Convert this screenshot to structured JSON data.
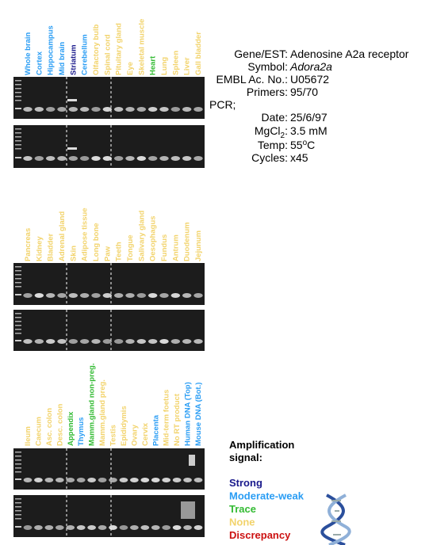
{
  "panels": [
    {
      "lanes": [
        {
          "label": "Whole brain",
          "color": "#2a9df4"
        },
        {
          "label": "Cortex",
          "color": "#2a9df4"
        },
        {
          "label": "Hippocampus",
          "color": "#2a9df4"
        },
        {
          "label": "Mid brain",
          "color": "#2a9df4"
        },
        {
          "label": "Striatum",
          "color": "#1a1a8c"
        },
        {
          "label": "Cerebellum",
          "color": "#2a9df4"
        },
        {
          "label": "Olfactory bulb",
          "color": "#f2d36b"
        },
        {
          "label": "Spinal cord",
          "color": "#f2d36b"
        },
        {
          "label": "Pituitary gland",
          "color": "#f2d36b"
        },
        {
          "label": "Eye",
          "color": "#f2d36b"
        },
        {
          "label": "Skeletal muscle",
          "color": "#f2d36b"
        },
        {
          "label": "Heart",
          "color": "#33bb33"
        },
        {
          "label": "Lung",
          "color": "#f2d36b"
        },
        {
          "label": "Spleen",
          "color": "#f2d36b"
        },
        {
          "label": "Liver",
          "color": "#f2d36b"
        },
        {
          "label": "Gall bladder",
          "color": "#f2d36b"
        }
      ]
    },
    {
      "lanes": [
        {
          "label": "Pancreas",
          "color": "#f2d36b"
        },
        {
          "label": "Kidney",
          "color": "#f2d36b"
        },
        {
          "label": "Bladder",
          "color": "#f2d36b"
        },
        {
          "label": "Adrenal gland",
          "color": "#f2d36b"
        },
        {
          "label": "Skin",
          "color": "#f2d36b"
        },
        {
          "label": "Adipose tissue",
          "color": "#f2d36b"
        },
        {
          "label": "Long bone",
          "color": "#f2d36b"
        },
        {
          "label": "Paw",
          "color": "#f2d36b"
        },
        {
          "label": "Teeth",
          "color": "#f2d36b"
        },
        {
          "label": "Tongue",
          "color": "#f2d36b"
        },
        {
          "label": "Salivary gland",
          "color": "#f2d36b"
        },
        {
          "label": "Oesophagus",
          "color": "#f2d36b"
        },
        {
          "label": "Fundus",
          "color": "#f2d36b"
        },
        {
          "label": "Antrum",
          "color": "#f2d36b"
        },
        {
          "label": "Duodenum",
          "color": "#f2d36b"
        },
        {
          "label": "Jejunum",
          "color": "#f2d36b"
        }
      ]
    },
    {
      "lanes": [
        {
          "label": "Ileum",
          "color": "#f2d36b"
        },
        {
          "label": "Caecum",
          "color": "#f2d36b"
        },
        {
          "label": "Asc. colon",
          "color": "#f2d36b"
        },
        {
          "label": "Desc. colon",
          "color": "#f2d36b"
        },
        {
          "label": "Appendix",
          "color": "#33bb33"
        },
        {
          "label": "Thymus",
          "color": "#2a9df4"
        },
        {
          "label": "Mamm.gland non-preg.",
          "color": "#33bb33"
        },
        {
          "label": "Mamm.gland preg.",
          "color": "#f2d36b"
        },
        {
          "label": "Testis",
          "color": "#f2d36b"
        },
        {
          "label": "Epididymis",
          "color": "#f2d36b"
        },
        {
          "label": "Ovary",
          "color": "#f2d36b"
        },
        {
          "label": "Cervix",
          "color": "#f2d36b"
        },
        {
          "label": "Placenta",
          "color": "#2a9df4"
        },
        {
          "label": "Mid-term foetus",
          "color": "#f2d36b"
        },
        {
          "label": "No RT product",
          "color": "#f2d36b"
        },
        {
          "label": "Human DNA (Top)",
          "color": "#2a9df4"
        },
        {
          "label": "Mouse DNA (Bot.)",
          "color": "#2a9df4"
        }
      ]
    }
  ],
  "info": {
    "gene": {
      "key": "Gene/EST:",
      "value": "Adenosine A2a receptor"
    },
    "symbol": {
      "key": "Symbol:",
      "value": "Adora2a"
    },
    "embl": {
      "key": "EMBL Ac. No.:",
      "value": "U05672"
    },
    "primers": {
      "key": "Primers:",
      "value": "95/70"
    },
    "pcr": "PCR;",
    "date": {
      "key": "Date:",
      "value": "25/6/97"
    },
    "mgcl": {
      "key": "MgCl",
      "sub": "2",
      "colon": ":",
      "value": "3.5 mM"
    },
    "temp": {
      "key": "Temp:",
      "value": "55",
      "sup": "o",
      "unit": "C"
    },
    "cycles": {
      "key": "Cycles:",
      "value": "x45"
    }
  },
  "legend": {
    "title1": "Amplification",
    "title2": "signal:",
    "items": [
      {
        "label": "Strong",
        "color": "#1a1a8c"
      },
      {
        "label": "Moderate-weak",
        "color": "#2a9df4"
      },
      {
        "label": "Trace",
        "color": "#33bb33"
      },
      {
        "label": "None",
        "color": "#f2d36b"
      },
      {
        "label": "Discrepancy",
        "color": "#cc1111"
      }
    ]
  }
}
